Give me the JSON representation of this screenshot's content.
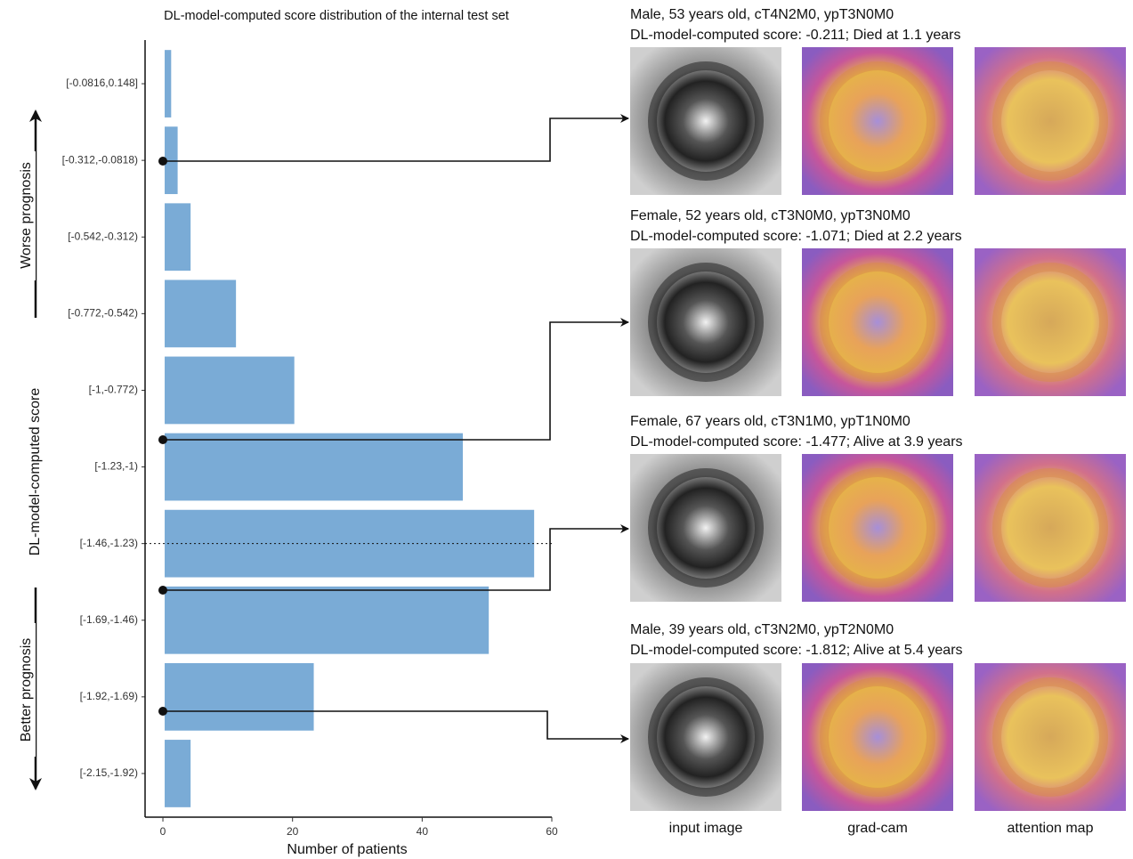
{
  "chart_data": {
    "type": "bar",
    "orientation": "horizontal",
    "title": "DL-model-computed score distribution of the internal test set",
    "x_label": "Number of patients",
    "y_label": "DL-model-computed score",
    "categories": [
      "[-0.0816,0.148]",
      "[-0.312,-0.0818)",
      "[-0.542,-0.312)",
      "[-0.772,-0.542)",
      "[-1,-0.772)",
      "[-1.23,-1)",
      "[-1.46,-1.23)",
      "[-1.69,-1.46)",
      "[-1.92,-1.69)",
      "[-2.15,-1.92)"
    ],
    "values": [
      1,
      2,
      4,
      11,
      20,
      46,
      57,
      50,
      23,
      4
    ],
    "color": "#7aabd6",
    "xlim": [
      -2.75,
      60
    ],
    "xticks": [
      0,
      20,
      40,
      60
    ],
    "annotations": [
      "Worse prognosis",
      "Better prognosis"
    ]
  },
  "cases": [
    {
      "line1": "Male, 53  years old, cT4N2M0, ypT3N0M0",
      "line2": "DL-model-computed score: -0.211; Died at 1.1 years"
    },
    {
      "line1": "Female, 52 years old, cT3N0M0, ypT3N0M0",
      "line2": "DL-model-computed score: -1.071; Died at 2.2 years"
    },
    {
      "line1": "Female, 67 years old, cT3N1M0, ypT1N0M0",
      "line2": "DL-model-computed score: -1.477; Alive at 3.9 years"
    },
    {
      "line1": "Male, 39 years old, cT3N2M0, ypT2N0M0",
      "line2": "DL-model-computed score: -1.812; Alive at 5.4 years"
    }
  ],
  "image_labels": [
    "input image",
    "grad-cam",
    "attention map"
  ]
}
